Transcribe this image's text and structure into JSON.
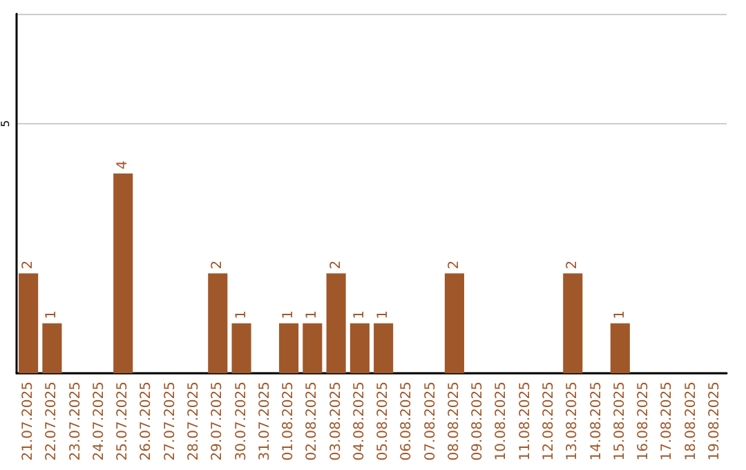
{
  "chart_data": {
    "type": "bar",
    "categories": [
      "21.07.2025",
      "22.07.2025",
      "23.07.2025",
      "24.07.2025",
      "25.07.2025",
      "26.07.2025",
      "27.07.2025",
      "28.07.2025",
      "29.07.2025",
      "30.07.2025",
      "31.07.2025",
      "01.08.2025",
      "02.08.2025",
      "03.08.2025",
      "04.08.2025",
      "05.08.2025",
      "06.08.2025",
      "07.08.2025",
      "08.08.2025",
      "09.08.2025",
      "10.08.2025",
      "11.08.2025",
      "12.08.2025",
      "13.08.2025",
      "14.08.2025",
      "15.08.2025",
      "16.08.2025",
      "17.08.2025",
      "18.08.2025",
      "19.08.2025"
    ],
    "values": [
      2,
      1,
      0,
      0,
      4,
      0,
      0,
      0,
      2,
      1,
      0,
      1,
      1,
      2,
      1,
      1,
      0,
      0,
      2,
      0,
      0,
      0,
      0,
      2,
      0,
      1,
      0,
      0,
      0,
      0
    ],
    "value_labels": [
      "2",
      "1",
      null,
      null,
      "4",
      null,
      null,
      null,
      "2",
      "1",
      null,
      "1",
      "1",
      "2",
      "1",
      "1",
      null,
      null,
      "2",
      null,
      null,
      null,
      null,
      "2",
      null,
      "1",
      null,
      null,
      null,
      null
    ],
    "color": "#a0572a",
    "ylim": [
      0,
      7.2
    ],
    "yticks": [
      5
    ],
    "grid": "y"
  }
}
